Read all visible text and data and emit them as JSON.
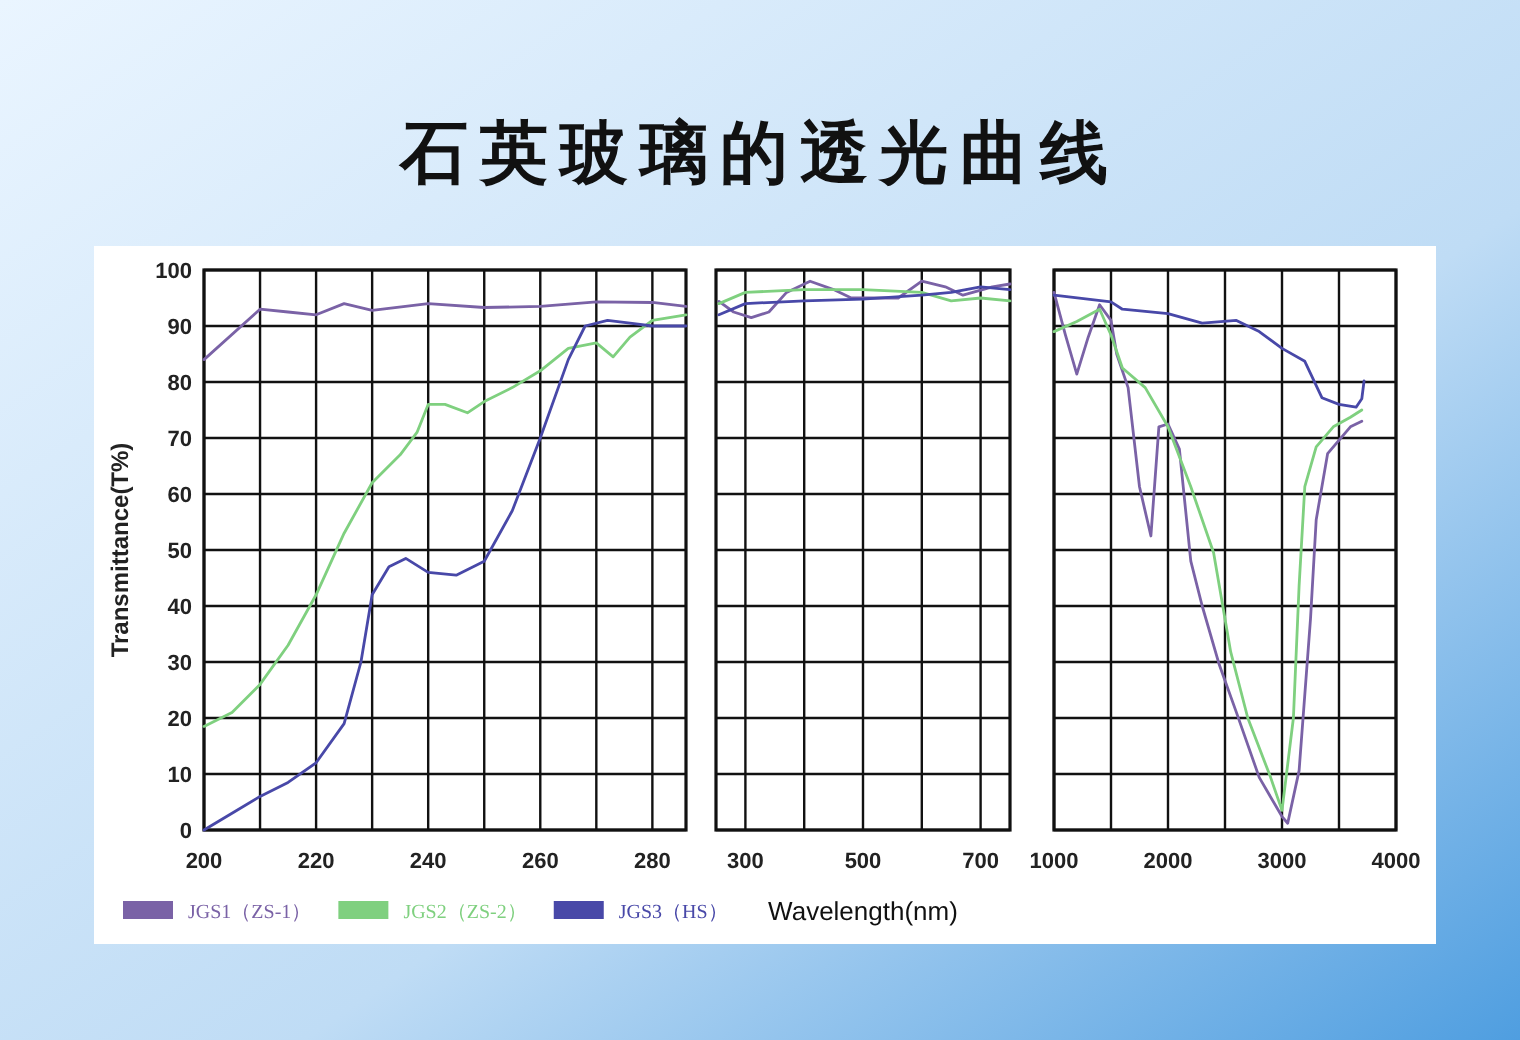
{
  "chart_data": [
    {
      "type": "line",
      "title": "石英玻璃的透光曲线",
      "ylabel": "Transmittance(T%)",
      "legend": "bottom",
      "grid": true,
      "xlim": [
        200,
        286
      ],
      "ylim": [
        0,
        100
      ],
      "xticks": [
        200,
        {
          "value": 210,
          "label": null
        },
        220,
        {
          "value": 230,
          "label": null
        },
        240,
        {
          "value": 250,
          "label": null
        },
        260,
        {
          "value": 270,
          "label": null
        },
        280
      ],
      "yticks": [
        0,
        10,
        20,
        30,
        40,
        50,
        60,
        70,
        80,
        90,
        100
      ],
      "series": [
        {
          "name": "JGS1（ZS-1）",
          "color": "#7a62a6",
          "x": [
            200,
            210,
            215,
            220,
            225,
            230,
            240,
            250,
            260,
            270,
            280,
            286
          ],
          "values": [
            84,
            93,
            92.5,
            92,
            94,
            92.8,
            94,
            93.3,
            93.5,
            94.3,
            94.2,
            93.5
          ]
        },
        {
          "name": "JGS2（ZS-2）",
          "color": "#7fd07f",
          "x": [
            200,
            205,
            210,
            215,
            220,
            225,
            230,
            235,
            238,
            240,
            243,
            247,
            250,
            255,
            260,
            265,
            270,
            273,
            276,
            280,
            286
          ],
          "values": [
            18.5,
            21,
            26,
            33,
            42,
            53,
            62,
            67,
            71,
            76,
            76,
            74.5,
            76.5,
            79,
            82,
            86,
            87,
            84.5,
            88,
            91,
            92
          ]
        },
        {
          "name": "JGS3（HS）",
          "color": "#4848a8",
          "x": [
            200,
            205,
            210,
            215,
            220,
            225,
            228,
            230,
            233,
            236,
            240,
            245,
            250,
            255,
            260,
            265,
            268,
            272,
            276,
            280,
            286
          ],
          "values": [
            0,
            3,
            6,
            8.5,
            12,
            19,
            30,
            42,
            47,
            48.5,
            46,
            45.5,
            48,
            57,
            70,
            84,
            90,
            91,
            90.5,
            90,
            90
          ]
        }
      ]
    },
    {
      "type": "line",
      "xlabel": "Wavelength(nm)",
      "grid": true,
      "tick_labels": "x",
      "xlim": [
        250,
        750
      ],
      "ylim": [
        0,
        100
      ],
      "xticks": [
        300,
        {
          "value": 400,
          "label": null
        },
        500,
        {
          "value": 600,
          "label": null
        },
        700
      ],
      "yticks": [
        0,
        10,
        20,
        30,
        40,
        50,
        60,
        70,
        80,
        90,
        100
      ],
      "series": [
        {
          "color": "#7a62a6",
          "x": [
            255,
            280,
            310,
            340,
            370,
            410,
            450,
            480,
            530,
            560,
            600,
            640,
            670,
            720,
            750
          ],
          "values": [
            94.4,
            92.5,
            91.5,
            92.5,
            96,
            98,
            96.5,
            95,
            95,
            95,
            98,
            97,
            95.5,
            97,
            97.5
          ]
        },
        {
          "color": "#7fd07f",
          "x": [
            255,
            300,
            400,
            500,
            600,
            650,
            700,
            750
          ],
          "values": [
            94,
            96,
            96.5,
            96.5,
            96,
            94.5,
            95,
            94.5
          ]
        },
        {
          "color": "#4848a8",
          "x": [
            255,
            300,
            400,
            500,
            600,
            650,
            700,
            750
          ],
          "values": [
            92,
            94,
            94.5,
            94.8,
            95.5,
            96,
            97,
            96.5
          ]
        }
      ]
    },
    {
      "type": "line",
      "grid": true,
      "tick_labels": "x",
      "xlim": [
        1000,
        4000
      ],
      "ylim": [
        0,
        100
      ],
      "xticks": [
        1000,
        {
          "value": 1500,
          "label": null
        },
        2000,
        {
          "value": 2500,
          "label": null
        },
        3000,
        {
          "value": 3500,
          "label": null
        },
        4000
      ],
      "yticks": [
        0,
        10,
        20,
        30,
        40,
        50,
        60,
        70,
        80,
        90,
        100
      ],
      "series": [
        {
          "color": "#7a62a6",
          "x": [
            1000,
            1100,
            1200,
            1300,
            1400,
            1500,
            1550,
            1650,
            1750,
            1850,
            1920,
            2000,
            2100,
            2200,
            2300,
            2450,
            2600,
            2800,
            3000,
            3050,
            3150,
            3250,
            3300,
            3400,
            3600,
            3700
          ],
          "values": [
            96,
            88.4,
            81.4,
            88,
            93.8,
            91,
            85,
            79,
            61.3,
            52.5,
            72,
            72.5,
            68,
            48,
            40,
            29.5,
            21,
            9.4,
            2.4,
            1.2,
            10.6,
            37.7,
            55.4,
            67.2,
            72,
            73
          ]
        },
        {
          "color": "#7fd07f",
          "x": [
            1000,
            1200,
            1400,
            1500,
            1600,
            1800,
            2000,
            2200,
            2400,
            2550,
            2700,
            2900,
            3000,
            3100,
            3150,
            3200,
            3300,
            3450,
            3600,
            3700
          ],
          "values": [
            89,
            90.8,
            93,
            88.4,
            82.5,
            79,
            72,
            61.3,
            49.5,
            31.8,
            20,
            9.4,
            3.5,
            20,
            43.6,
            61.3,
            68.4,
            72,
            73.7,
            75
          ]
        },
        {
          "color": "#4848a8",
          "x": [
            1000,
            1500,
            1600,
            2000,
            2300,
            2600,
            2800,
            3000,
            3200,
            3350,
            3500,
            3650,
            3700,
            3720
          ],
          "values": [
            95.5,
            94.3,
            93,
            92.2,
            90.5,
            91,
            89,
            86,
            83.7,
            77.2,
            76,
            75.5,
            77,
            80.2
          ]
        }
      ]
    }
  ]
}
